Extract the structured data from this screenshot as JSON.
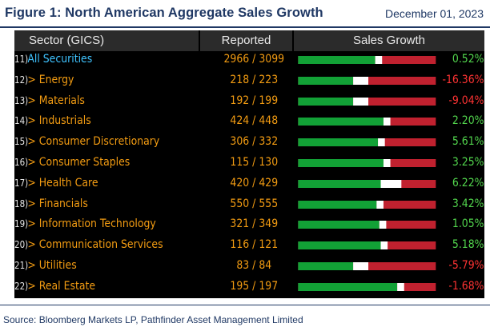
{
  "header": {
    "title": "Figure 1: North American Aggregate Sales Growth",
    "date": "December 01, 2023"
  },
  "table": {
    "columns": {
      "sector": "Sector (GICS)",
      "reported": "Reported",
      "growth": "Sales Growth"
    },
    "rows": [
      {
        "num": "11)",
        "sector": "All Securities",
        "reported": "2966 / 3099",
        "growth": "0.52%",
        "growth_value": 0.52,
        "bar_fraction": 0.56,
        "is_all": true
      },
      {
        "num": "12)",
        "sector": "> Energy",
        "reported": "218 / 223",
        "growth": "-16.36%",
        "growth_value": -16.36,
        "bar_fraction": 0.4,
        "is_all": false
      },
      {
        "num": "13)",
        "sector": "> Materials",
        "reported": "192 / 199",
        "growth": "-9.04%",
        "growth_value": -9.04,
        "bar_fraction": 0.4,
        "is_all": false
      },
      {
        "num": "14)",
        "sector": "> Industrials",
        "reported": "424 / 448",
        "growth": "2.20%",
        "growth_value": 2.2,
        "bar_fraction": 0.62,
        "is_all": false
      },
      {
        "num": "15)",
        "sector": "> Consumer Discretionary",
        "reported": "306 / 332",
        "growth": "5.61%",
        "growth_value": 5.61,
        "bar_fraction": 0.58,
        "is_all": false
      },
      {
        "num": "16)",
        "sector": "> Consumer Staples",
        "reported": "115 / 130",
        "growth": "3.25%",
        "growth_value": 3.25,
        "bar_fraction": 0.62,
        "is_all": false
      },
      {
        "num": "17)",
        "sector": "> Health Care",
        "reported": "420 / 429",
        "growth": "6.22%",
        "growth_value": 6.22,
        "bar_fraction": 0.6,
        "is_all": false
      },
      {
        "num": "18)",
        "sector": "> Financials",
        "reported": "550 / 555",
        "growth": "3.42%",
        "growth_value": 3.42,
        "bar_fraction": 0.57,
        "is_all": false
      },
      {
        "num": "19)",
        "sector": "> Information Technology",
        "reported": "321 / 349",
        "growth": "1.05%",
        "growth_value": 1.05,
        "bar_fraction": 0.59,
        "is_all": false
      },
      {
        "num": "20)",
        "sector": "> Communication Services",
        "reported": "116 / 121",
        "growth": "5.18%",
        "growth_value": 5.18,
        "bar_fraction": 0.6,
        "is_all": false
      },
      {
        "num": "21)",
        "sector": "> Utilities",
        "reported": "83 / 84",
        "growth": "-5.79%",
        "growth_value": -5.79,
        "bar_fraction": 0.4,
        "is_all": false
      },
      {
        "num": "22)",
        "sector": "> Real Estate",
        "reported": "195 / 197",
        "growth": "-1.68%",
        "growth_value": -1.68,
        "bar_fraction": 0.72,
        "is_all": false
      }
    ]
  },
  "footer": {
    "source": "Source: Bloomberg Markets LP, Pathfinder Asset Management Limited"
  },
  "colors": {
    "green_bar": "#12a136",
    "red_bar": "#c0212f",
    "positive_text": "#52d64d",
    "negative_text": "#ff3333",
    "sector_text": "#f39c12",
    "all_securities_text": "#3fc3ff"
  }
}
